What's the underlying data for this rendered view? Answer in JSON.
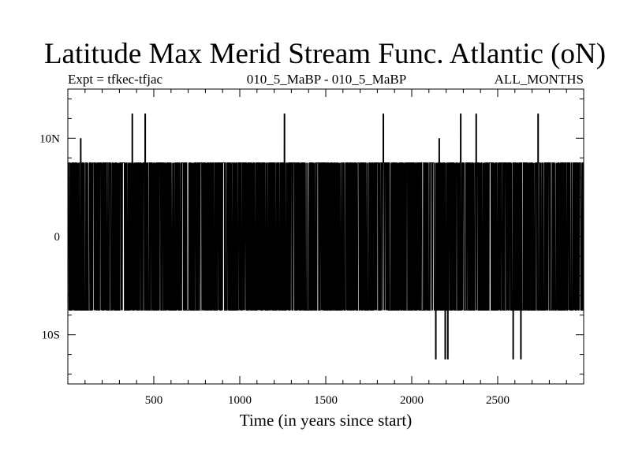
{
  "chart_data": {
    "type": "line",
    "title": "Latitude Max Merid Stream Func. Atlantic (oN)",
    "subtitle_left": "Expt = tfkec-tfjac",
    "subtitle_center": "010_5_MaBP - 010_5_MaBP",
    "subtitle_right": "ALL_MONTHS",
    "xlabel": "Time (in years since start)",
    "ylabel": "",
    "xlim": [
      0,
      3000
    ],
    "ylim": [
      -15,
      15
    ],
    "x_ticks": [
      {
        "value": 500,
        "label": "500"
      },
      {
        "value": 1000,
        "label": "1000"
      },
      {
        "value": 1500,
        "label": "1500"
      },
      {
        "value": 2000,
        "label": "2000"
      },
      {
        "value": 2500,
        "label": "2500"
      }
    ],
    "y_ticks": [
      {
        "value": 10,
        "label": "10N"
      },
      {
        "value": 0,
        "label": "0"
      },
      {
        "value": -10,
        "label": "10S"
      }
    ],
    "series": [
      {
        "values_description_free": true,
        "x_start": 1,
        "x_step": 1,
        "dominant_levels": [
          7.5,
          -7.5
        ],
        "upper_level": 7.5,
        "lower_level": -7.5,
        "spikes": [
          {
            "x": 75,
            "y": 10
          },
          {
            "x": 375,
            "y": 12.5
          },
          {
            "x": 450,
            "y": 12.5
          },
          {
            "x": 1260,
            "y": 12.5
          },
          {
            "x": 1835,
            "y": 12.5
          },
          {
            "x": 2140,
            "y": -12.5
          },
          {
            "x": 2160,
            "y": 10
          },
          {
            "x": 2195,
            "y": -12.5
          },
          {
            "x": 2210,
            "y": -12.5
          },
          {
            "x": 2285,
            "y": 12.5
          },
          {
            "x": 2375,
            "y": 12.5
          },
          {
            "x": 2590,
            "y": -12.5
          },
          {
            "x": 2635,
            "y": -12.5
          },
          {
            "x": 2735,
            "y": 12.5
          }
        ]
      }
    ],
    "grid": false,
    "line_color": "#000000"
  }
}
